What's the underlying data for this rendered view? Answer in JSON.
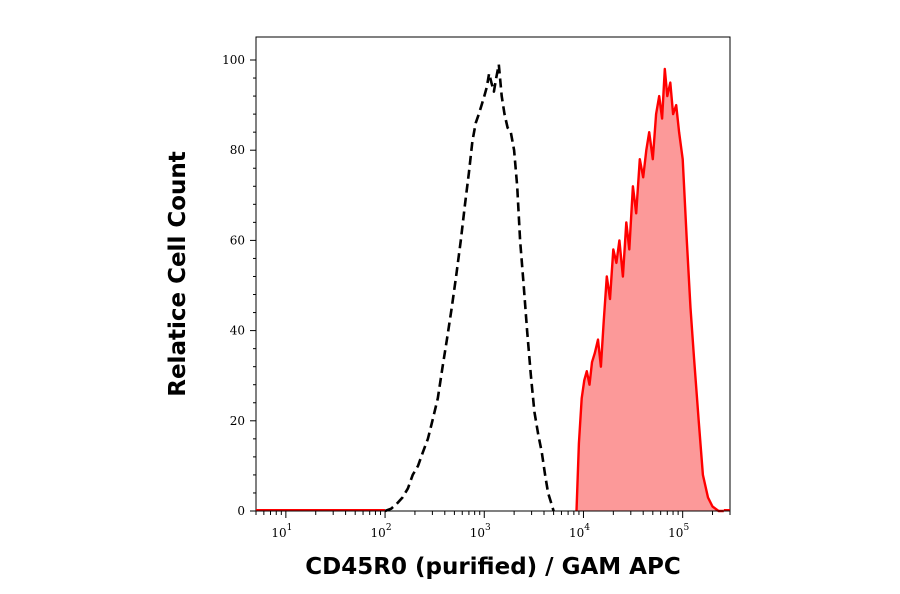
{
  "chart_data": {
    "type": "line",
    "title": "",
    "xlabel": "CD45R0 (purified) / GAM APC",
    "ylabel": "Relatice Cell Count",
    "x_scale": "log",
    "xlim": [
      5,
      300000
    ],
    "ylim": [
      0,
      100
    ],
    "x_ticks": [
      {
        "value": 10,
        "base": "10",
        "exp": "1"
      },
      {
        "value": 100,
        "base": "10",
        "exp": "2"
      },
      {
        "value": 1000,
        "base": "10",
        "exp": "3"
      },
      {
        "value": 10000,
        "base": "10",
        "exp": "4"
      },
      {
        "value": 100000,
        "base": "10",
        "exp": "5"
      }
    ],
    "y_ticks": [
      {
        "value": 0,
        "label": "0"
      },
      {
        "value": 20,
        "label": "20"
      },
      {
        "value": 40,
        "label": "40"
      },
      {
        "value": 60,
        "label": "60"
      },
      {
        "value": 80,
        "label": "80"
      },
      {
        "value": 100,
        "label": "100"
      }
    ],
    "grid": false,
    "legend": "none",
    "series": [
      {
        "style": "dashed",
        "color": "#000000",
        "fill": "none",
        "x": [
          100,
          115,
          130,
          150,
          170,
          190,
          215,
          240,
          270,
          300,
          340,
          380,
          420,
          470,
          520,
          580,
          640,
          700,
          760,
          820,
          880,
          940,
          1000,
          1060,
          1120,
          1180,
          1250,
          1320,
          1400,
          1500,
          1600,
          1720,
          1850,
          2000,
          2150,
          2300,
          2500,
          2700,
          2950,
          3200,
          3500,
          3800,
          4100,
          4400,
          4700,
          5000
        ],
        "y": [
          0,
          0.5,
          1.5,
          3,
          5,
          8,
          10,
          13,
          16,
          20,
          25,
          32,
          38,
          45,
          52,
          60,
          68,
          75,
          82,
          86,
          88,
          90,
          92,
          94,
          97,
          95,
          93,
          96,
          99,
          92,
          88,
          85,
          84,
          80,
          72,
          60,
          50,
          40,
          30,
          22,
          17,
          13,
          8,
          4,
          2,
          0
        ]
      },
      {
        "style": "solid",
        "color": "#ff0000",
        "fill": "#fc9999",
        "x": [
          8500,
          9000,
          9600,
          10200,
          10800,
          11500,
          12200,
          13000,
          14000,
          15000,
          16000,
          17200,
          18500,
          20000,
          21500,
          23000,
          25000,
          27000,
          29000,
          31500,
          34000,
          37000,
          40000,
          43000,
          46000,
          50000,
          54000,
          58000,
          62000,
          66000,
          70000,
          75000,
          80000,
          86000,
          92000,
          100000,
          110000,
          120000,
          130000,
          145000,
          160000,
          180000,
          200000,
          230000,
          260000
        ],
        "y": [
          0,
          15,
          25,
          29,
          31,
          28,
          33,
          35,
          38,
          32,
          42,
          52,
          47,
          58,
          55,
          60,
          52,
          64,
          58,
          72,
          66,
          78,
          74,
          80,
          84,
          78,
          88,
          92,
          87,
          98,
          92,
          95,
          88,
          90,
          84,
          78,
          60,
          45,
          34,
          20,
          8,
          3,
          1,
          0,
          0
        ]
      }
    ]
  }
}
